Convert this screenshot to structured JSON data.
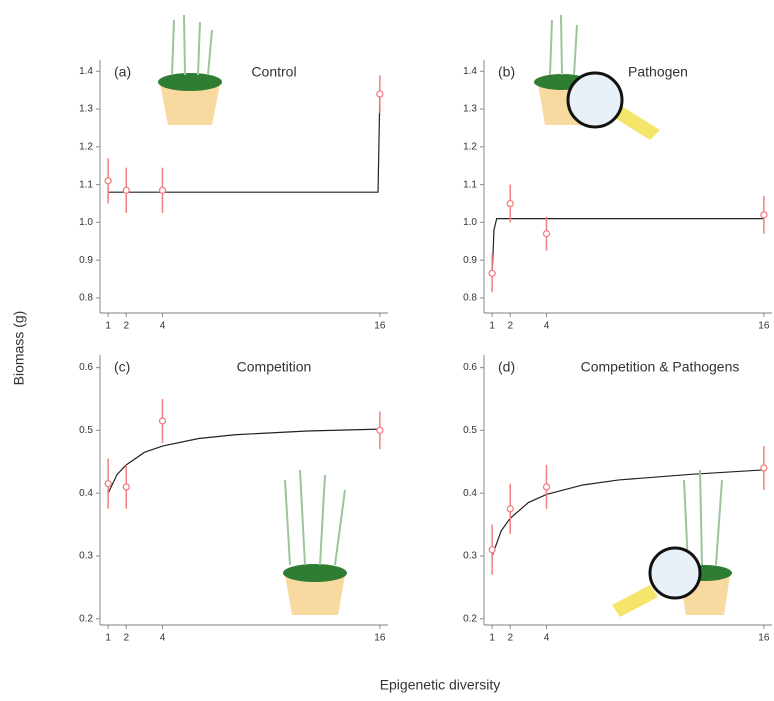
{
  "ylabel": "Biomass (g)",
  "xlabel": "Epigenetic diversity",
  "chart_data": [
    {
      "type": "scatter",
      "panel_label": "(a)",
      "title": "Control",
      "x": [
        1,
        2,
        4,
        16
      ],
      "values": [
        1.11,
        1.085,
        1.085,
        1.34
      ],
      "errors": [
        0.06,
        0.06,
        0.06,
        0.05
      ],
      "color": "#f08080",
      "fit": {
        "x": [
          1,
          15.9,
          16
        ],
        "values": [
          1.08,
          1.08,
          1.34
        ],
        "color": "#222222"
      },
      "xlim": [
        0.55,
        16.45
      ],
      "ylim": [
        0.76,
        1.43
      ],
      "xticks": [
        1,
        2,
        4,
        16
      ],
      "yticks": [
        0.8,
        0.9,
        {
          "value": 1,
          "label": "1.0"
        },
        1.1,
        1.2,
        1.3,
        1.4
      ]
    },
    {
      "type": "scatter",
      "panel_label": "(b)",
      "title": "Pathogen",
      "x": [
        1,
        2,
        4,
        16
      ],
      "values": [
        0.865,
        1.05,
        0.97,
        1.02
      ],
      "errors": [
        0.05,
        0.05,
        0.045,
        0.05
      ],
      "color": "#f08080",
      "fit": {
        "x": [
          1,
          1.1,
          1.25,
          16
        ],
        "values": [
          0.86,
          0.98,
          1.01,
          1.01
        ],
        "color": "#222222"
      },
      "xlim": [
        0.55,
        16.45
      ],
      "ylim": [
        0.76,
        1.43
      ],
      "xticks": [
        1,
        2,
        4,
        16
      ],
      "yticks": [
        0.8,
        0.9,
        {
          "value": 1,
          "label": "1.0"
        },
        1.1,
        1.2,
        1.3,
        1.4
      ]
    },
    {
      "type": "scatter",
      "panel_label": "(c)",
      "title": "Competition",
      "x": [
        1,
        2,
        4,
        16
      ],
      "values": [
        0.415,
        0.41,
        0.515,
        0.5
      ],
      "errors": [
        0.04,
        0.035,
        0.035,
        0.03
      ],
      "color": "#f08080",
      "fit": {
        "x": [
          1,
          1.5,
          2,
          3,
          4,
          6,
          8,
          12,
          16
        ],
        "values": [
          0.4,
          0.43,
          0.445,
          0.465,
          0.475,
          0.487,
          0.493,
          0.499,
          0.502
        ],
        "color": "#222222"
      },
      "xlim": [
        0.55,
        16.45
      ],
      "ylim": [
        0.19,
        0.62
      ],
      "xticks": [
        1,
        2,
        4,
        16
      ],
      "yticks": [
        0.2,
        0.3,
        0.4,
        0.5,
        0.6
      ]
    },
    {
      "type": "scatter",
      "panel_label": "(d)",
      "title": "Competition & Pathogens",
      "x": [
        1,
        2,
        4,
        16
      ],
      "values": [
        0.31,
        0.375,
        0.41,
        0.44
      ],
      "errors": [
        0.04,
        0.04,
        0.035,
        0.035
      ],
      "color": "#f08080",
      "fit": {
        "x": [
          1,
          1.5,
          2,
          3,
          4,
          6,
          8,
          12,
          16
        ],
        "values": [
          0.3,
          0.34,
          0.36,
          0.385,
          0.398,
          0.413,
          0.421,
          0.43,
          0.437
        ],
        "color": "#222222"
      },
      "xlim": [
        0.55,
        16.45
      ],
      "ylim": [
        0.19,
        0.62
      ],
      "xticks": [
        1,
        2,
        4,
        16
      ],
      "yticks": [
        0.2,
        0.3,
        0.4,
        0.5,
        0.6
      ]
    }
  ]
}
